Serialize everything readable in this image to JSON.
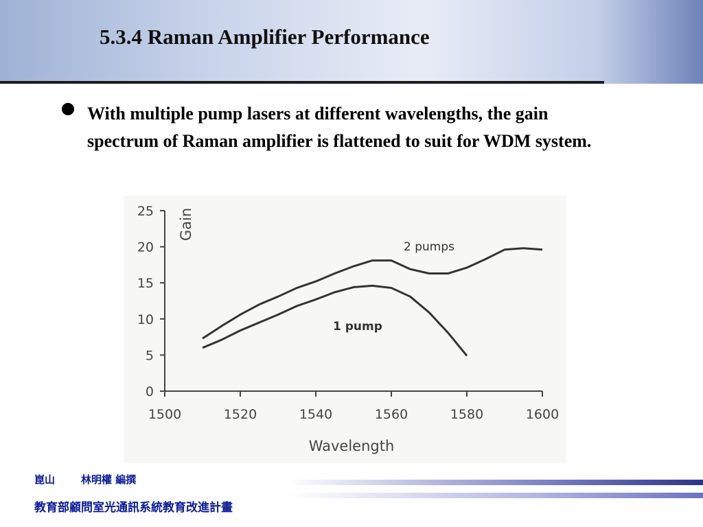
{
  "slide": {
    "title": "5.3.4  Raman Amplifier Performance",
    "bullet": "With multiple pump lasers at different wavelengths, the gain spectrum of Raman amplifier is flattened to suit for WDM system.",
    "footer_place": "崑山",
    "footer_author": "林明權 編撰",
    "footer_project": "教育部顧問室光通訊系統教育改進計畫"
  },
  "chart_data": {
    "type": "line",
    "x_label": "Wavelength",
    "y_label": "Gain",
    "x": [
      1510,
      1515,
      1520,
      1525,
      1530,
      1535,
      1540,
      1545,
      1550,
      1555,
      1560,
      1565,
      1570,
      1575,
      1580,
      1585,
      1590,
      1595,
      1600
    ],
    "series": [
      {
        "name": "2 pumps",
        "color": "#333333",
        "values": [
          7.3,
          9.0,
          10.6,
          12.0,
          13.1,
          14.3,
          15.2,
          16.3,
          17.3,
          18.1,
          18.1,
          16.9,
          16.3,
          16.3,
          17.1,
          18.3,
          19.6,
          19.8,
          19.6
        ]
      },
      {
        "name": "1 pump",
        "color": "#333333",
        "values": [
          6.0,
          7.1,
          8.4,
          9.5,
          10.6,
          11.8,
          12.7,
          13.7,
          14.4,
          14.6,
          14.3,
          13.1,
          10.9,
          8.1,
          4.9,
          null,
          null,
          null,
          null
        ]
      }
    ],
    "xlim": [
      1500,
      1600
    ],
    "xticks": [
      1500,
      1520,
      1540,
      1560,
      1580,
      1600
    ],
    "ylim": [
      0,
      25
    ],
    "yticks": [
      0,
      5,
      10,
      15,
      20,
      25
    ]
  }
}
